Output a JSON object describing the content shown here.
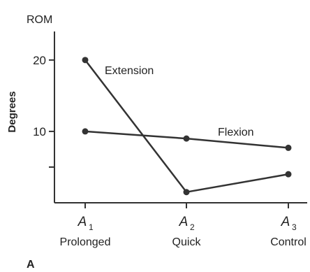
{
  "chart_data": {
    "type": "line",
    "title": "ROM",
    "ylabel": "Degrees",
    "ylim": [
      0,
      24
    ],
    "yticks": [
      10,
      20
    ],
    "x": [
      {
        "letter": "A",
        "sub": "1",
        "name": "Prolonged"
      },
      {
        "letter": "A",
        "sub": "2",
        "name": "Quick"
      },
      {
        "letter": "A",
        "sub": "3",
        "name": "Control"
      }
    ],
    "series": [
      {
        "name": "Extension",
        "values": [
          20,
          1.5,
          4
        ],
        "color": "#333333"
      },
      {
        "name": "Flexion",
        "values": [
          10,
          9,
          7.7
        ],
        "color": "#333333"
      }
    ],
    "panel_label": "A",
    "grid": false,
    "legend": "inline labels"
  }
}
